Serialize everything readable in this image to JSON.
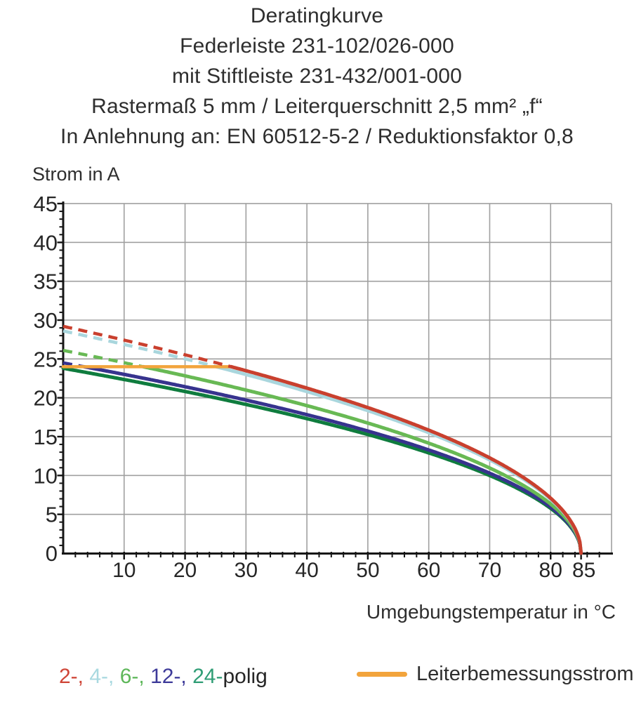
{
  "title": {
    "lines": [
      "Deratingkurve",
      "Federleiste 231-102/026-000",
      "mit Stiftleiste 231-432/001-000",
      "Rastermaß 5 mm / Leiterquerschnitt 2,5 mm² „f“",
      "In Anlehnung an: EN 60512-5-2 / Reduktionsfaktor 0,8"
    ]
  },
  "legend": {
    "pole_segments": [
      {
        "text": "2-,",
        "color": "#cf4537"
      },
      {
        "text": " 4-,",
        "color": "#a9d9e0"
      },
      {
        "text": " 6-,",
        "color": "#5eb75a"
      },
      {
        "text": " 12-,",
        "color": "#3d3a99"
      },
      {
        "text": " 24-",
        "color": "#2f9d75"
      },
      {
        "text": "polig",
        "color": "#262626"
      }
    ],
    "rated_current_label": "Leiterbemessungsstrom",
    "rated_current_color": "#f2a43c"
  },
  "chart_data": {
    "type": "line",
    "title": "Deratingkurve",
    "xlabel": "Umgebungstemperatur in °C",
    "ylabel": "Strom in A",
    "xlim": [
      0,
      90
    ],
    "ylim": [
      0,
      45
    ],
    "grid": true,
    "x_gridlines": [
      10,
      20,
      30,
      40,
      50,
      60,
      70,
      80,
      90
    ],
    "y_gridlines": [
      5,
      10,
      15,
      20,
      25,
      30,
      35,
      40,
      45
    ],
    "x_major_ticks": [
      10,
      20,
      30,
      40,
      50,
      60,
      70,
      80,
      85
    ],
    "x_minor_step": 2,
    "y_major_ticks": [
      0,
      5,
      10,
      15,
      20,
      25,
      30,
      35,
      40,
      45
    ],
    "y_minor_step": 1,
    "curve_model": "I(T) = I0 * sqrt(1 - T/85); drawn dashed where I exceeds the 24 A conductor rating",
    "t_end": 85,
    "dashed_above_current": 24,
    "series": [
      {
        "name": "2-polig",
        "color": "#c9402e",
        "i0": 29.2,
        "points": [
          [
            0,
            29.2
          ],
          [
            10,
            27.4
          ],
          [
            20,
            25.5
          ],
          [
            30,
            23.5
          ],
          [
            40,
            21.2
          ],
          [
            50,
            18.7
          ],
          [
            60,
            15.8
          ],
          [
            70,
            12.3
          ],
          [
            80,
            7.1
          ],
          [
            85,
            0
          ]
        ]
      },
      {
        "name": "4-polig",
        "color": "#a9d6dd",
        "i0": 28.6,
        "points": [
          [
            0,
            28.6
          ],
          [
            10,
            26.9
          ],
          [
            20,
            25.0
          ],
          [
            30,
            23.0
          ],
          [
            40,
            20.8
          ],
          [
            50,
            18.4
          ],
          [
            60,
            15.5
          ],
          [
            70,
            12.0
          ],
          [
            80,
            6.9
          ],
          [
            85,
            0
          ]
        ]
      },
      {
        "name": "6-polig",
        "color": "#68b954",
        "i0": 26.1,
        "points": [
          [
            0,
            26.1
          ],
          [
            10,
            24.5
          ],
          [
            20,
            22.8
          ],
          [
            30,
            21.0
          ],
          [
            40,
            19.0
          ],
          [
            50,
            16.7
          ],
          [
            60,
            14.2
          ],
          [
            70,
            11.0
          ],
          [
            80,
            6.3
          ],
          [
            85,
            0
          ]
        ]
      },
      {
        "name": "12-polig",
        "color": "#37338e",
        "i0": 24.5,
        "points": [
          [
            0,
            24.5
          ],
          [
            10,
            23.0
          ],
          [
            20,
            21.4
          ],
          [
            30,
            19.7
          ],
          [
            40,
            17.8
          ],
          [
            50,
            15.7
          ],
          [
            60,
            13.3
          ],
          [
            70,
            10.3
          ],
          [
            80,
            5.9
          ],
          [
            85,
            0
          ]
        ]
      },
      {
        "name": "24-polig",
        "color": "#0f7c3e",
        "i0": 23.8,
        "points": [
          [
            0,
            23.8
          ],
          [
            10,
            22.4
          ],
          [
            20,
            20.8
          ],
          [
            30,
            19.1
          ],
          [
            40,
            17.3
          ],
          [
            50,
            15.3
          ],
          [
            60,
            12.9
          ],
          [
            70,
            10.0
          ],
          [
            80,
            5.8
          ],
          [
            85,
            0
          ]
        ]
      }
    ],
    "rated_current_line": {
      "label": "Leiterbemessungsstrom",
      "value": 24,
      "t_from": 0,
      "t_to": 27.6,
      "color": "#f2a43c"
    }
  }
}
